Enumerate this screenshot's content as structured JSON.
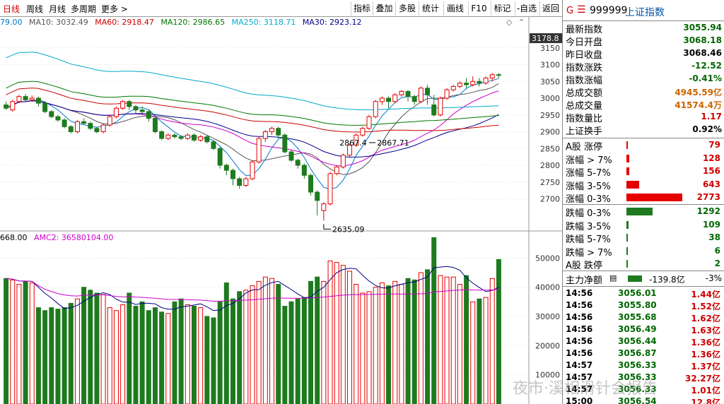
{
  "toolbar": {
    "period_tabs": [
      "日线",
      "周线",
      "月线",
      "多周期",
      "更多 >"
    ],
    "buttons": [
      "指标",
      "叠加",
      "多股",
      "统计",
      "画线",
      "F10",
      "标记",
      "-自选",
      "返回"
    ]
  },
  "ma_legend": [
    {
      "text": "79.00",
      "color": "#0077cc"
    },
    {
      "text": "MA10: 3032.49",
      "color": "#555555"
    },
    {
      "text": "MA60: 2918.47",
      "color": "#cc0000"
    },
    {
      "text": "MA120: 2986.65",
      "color": "#007700"
    },
    {
      "text": "MA250: 3118.71",
      "color": "#00aacc"
    },
    {
      "text": "MA30: 2923.12",
      "color": "#000088"
    }
  ],
  "vol_legend": [
    {
      "text": "668.00",
      "color": "#000000"
    },
    {
      "text": "AMC2: 36580104.00",
      "color": "#cc00cc"
    }
  ],
  "price_axis": {
    "current": "3178.8",
    "ticks": [
      "3150",
      "3100",
      "3050",
      "3000",
      "2950",
      "2900",
      "2850",
      "2800",
      "2750",
      "2700"
    ]
  },
  "vol_axis": {
    "ticks": [
      "50000",
      "40000",
      "30000",
      "20000",
      "10000"
    ]
  },
  "annotations": {
    "low": "2635.09",
    "mid": "2867.4",
    "mid2": "2867.71"
  },
  "chart_data": {
    "type": "candlestick",
    "candles": [
      [
        2980,
        2970,
        2990,
        2965
      ],
      [
        2965,
        2990,
        2995,
        2960
      ],
      [
        2990,
        3005,
        3010,
        2985
      ],
      [
        3005,
        2995,
        3012,
        2990
      ],
      [
        2995,
        3000,
        3008,
        2990
      ],
      [
        3000,
        2985,
        3005,
        2975
      ],
      [
        2985,
        2960,
        2990,
        2955
      ],
      [
        2960,
        2945,
        2965,
        2940
      ],
      [
        2945,
        2935,
        2950,
        2930
      ],
      [
        2935,
        2915,
        2940,
        2910
      ],
      [
        2915,
        2900,
        2920,
        2895
      ],
      [
        2900,
        2930,
        2935,
        2895
      ],
      [
        2930,
        2925,
        2940,
        2920
      ],
      [
        2925,
        2910,
        2930,
        2905
      ],
      [
        2910,
        2900,
        2915,
        2895
      ],
      [
        2900,
        2920,
        2925,
        2895
      ],
      [
        2920,
        2945,
        2950,
        2915
      ],
      [
        2945,
        2970,
        2975,
        2940
      ],
      [
        2970,
        2990,
        2995,
        2965
      ],
      [
        2990,
        2975,
        2995,
        2965
      ],
      [
        2975,
        2965,
        2980,
        2955
      ],
      [
        2965,
        2960,
        2975,
        2955
      ],
      [
        2960,
        2940,
        2965,
        2930
      ],
      [
        2940,
        2900,
        2945,
        2895
      ],
      [
        2900,
        2880,
        2905,
        2875
      ],
      [
        2880,
        2890,
        2895,
        2875
      ],
      [
        2890,
        2885,
        2895,
        2880
      ],
      [
        2885,
        2880,
        2890,
        2875
      ],
      [
        2880,
        2890,
        2895,
        2875
      ],
      [
        2890,
        2875,
        2895,
        2870
      ],
      [
        2875,
        2885,
        2890,
        2870
      ],
      [
        2885,
        2870,
        2890,
        2865
      ],
      [
        2870,
        2850,
        2875,
        2845
      ],
      [
        2850,
        2800,
        2855,
        2790
      ],
      [
        2800,
        2785,
        2805,
        2770
      ],
      [
        2785,
        2760,
        2790,
        2740
      ],
      [
        2760,
        2740,
        2765,
        2730
      ],
      [
        2740,
        2760,
        2765,
        2735
      ],
      [
        2760,
        2810,
        2815,
        2755
      ],
      [
        2810,
        2880,
        2885,
        2805
      ],
      [
        2880,
        2900,
        2905,
        2870
      ],
      [
        2900,
        2910,
        2915,
        2890
      ],
      [
        2910,
        2890,
        2915,
        2880
      ],
      [
        2890,
        2840,
        2895,
        2835
      ],
      [
        2840,
        2815,
        2845,
        2810
      ],
      [
        2815,
        2800,
        2820,
        2790
      ],
      [
        2800,
        2770,
        2805,
        2760
      ],
      [
        2770,
        2720,
        2775,
        2710
      ],
      [
        2720,
        2695,
        2725,
        2650
      ],
      [
        2665,
        2685,
        2690,
        2635
      ],
      [
        2685,
        2775,
        2780,
        2680
      ],
      [
        2775,
        2795,
        2800,
        2770
      ],
      [
        2795,
        2830,
        2835,
        2790
      ],
      [
        2830,
        2860,
        2865,
        2825
      ],
      [
        2860,
        2890,
        2895,
        2855
      ],
      [
        2890,
        2910,
        2915,
        2885
      ],
      [
        2910,
        2945,
        2950,
        2905
      ],
      [
        2945,
        2990,
        2995,
        2940
      ],
      [
        2990,
        3000,
        3005,
        2980
      ],
      [
        3000,
        2990,
        3005,
        2970
      ],
      [
        2990,
        3010,
        3015,
        2985
      ],
      [
        3010,
        3020,
        3025,
        3005
      ],
      [
        3020,
        3005,
        3025,
        2990
      ],
      [
        3005,
        2990,
        3010,
        2980
      ],
      [
        2990,
        3030,
        3035,
        2985
      ],
      [
        3030,
        3010,
        3040,
        2980
      ],
      [
        2980,
        2950,
        3010,
        2945
      ],
      [
        2950,
        3000,
        3005,
        2945
      ],
      [
        3000,
        3025,
        3030,
        2995
      ],
      [
        3025,
        3035,
        3040,
        3020
      ],
      [
        3035,
        3045,
        3050,
        3030
      ],
      [
        3045,
        3040,
        3060,
        3030
      ],
      [
        3040,
        3050,
        3065,
        3035
      ],
      [
        3050,
        3045,
        3060,
        3035
      ],
      [
        3045,
        3060,
        3065,
        3040
      ],
      [
        3060,
        3070,
        3075,
        3050
      ],
      [
        3070,
        3068,
        3075,
        3060
      ]
    ],
    "volumes": [
      4300,
      4250,
      4100,
      4200,
      4150,
      3300,
      3200,
      3300,
      3250,
      3300,
      3450,
      3600,
      4000,
      3900,
      3800,
      3750,
      3300,
      3200,
      3400,
      3800,
      3350,
      3500,
      3200,
      3300,
      3150,
      3100,
      3500,
      3600,
      3400,
      3350,
      3300,
      3000,
      2950,
      3500,
      4150,
      3600,
      3850,
      3900,
      4050,
      4200,
      4350,
      4300,
      4100,
      3350,
      3500,
      3600,
      3650,
      4200,
      4350,
      4200,
      4900,
      4850,
      4750,
      4550,
      4100,
      3800,
      3850,
      4000,
      4150,
      4050,
      4200,
      4100,
      4300,
      4250,
      4500,
      4600,
      5700,
      4400,
      4350,
      4350,
      4100,
      4400,
      3500,
      3600,
      3650,
      4300,
      4950
    ],
    "price_range": [
      2600,
      3200
    ],
    "vol_range": [
      0,
      60000
    ]
  },
  "right_panel": {
    "header": {
      "code": "999999",
      "name": "上证指数",
      "code_prefix": "G",
      "menu_icon": "menu-icon"
    },
    "quotes": [
      {
        "label": "最新指数",
        "value": "3055.94",
        "color": "#006600"
      },
      {
        "label": "今日开盘",
        "value": "3068.18",
        "color": "#006600"
      },
      {
        "label": "昨日收盘",
        "value": "3068.46",
        "color": "#000000"
      },
      {
        "label": "指数涨跌",
        "value": "-12.52",
        "color": "#006600"
      },
      {
        "label": "指数涨幅",
        "value": "-0.41%",
        "color": "#006600"
      },
      {
        "label": "总成交额",
        "value": "4945.59亿",
        "color": "#cc6600"
      },
      {
        "label": "总成交量",
        "value": "41574.4万",
        "color": "#cc6600"
      },
      {
        "label": "指数量比",
        "value": "1.17",
        "color": "#cc0000"
      },
      {
        "label": "上证换手",
        "value": "0.92%",
        "color": "#000000"
      }
    ],
    "breadth_up": [
      {
        "label": "A股 涨停",
        "value": "79",
        "bar": 0.02
      },
      {
        "label": "涨幅 > 7%",
        "value": "128",
        "bar": 0.04
      },
      {
        "label": "涨幅 5-7%",
        "value": "156",
        "bar": 0.05
      },
      {
        "label": "涨幅 3-5%",
        "value": "643",
        "bar": 0.21
      },
      {
        "label": "涨幅 0-3%",
        "value": "2773",
        "bar": 0.9
      }
    ],
    "breadth_down": [
      {
        "label": "跌幅 0-3%",
        "value": "1292",
        "bar": 0.42
      },
      {
        "label": "跌幅 3-5%",
        "value": "109",
        "bar": 0.035
      },
      {
        "label": "跌幅 5-7%",
        "value": "38",
        "bar": 0.012
      },
      {
        "label": "跌幅 > 7%",
        "value": "6",
        "bar": 0.004
      },
      {
        "label": "A股 跌停",
        "value": "2",
        "bar": 0.002
      }
    ],
    "netflow": {
      "label": "主力净额",
      "value": "-139.8亿",
      "pct": "-3%",
      "icon": "list-icon"
    },
    "ticks": [
      {
        "time": "14:56",
        "price": "3056.01",
        "vol": "1.44亿"
      },
      {
        "time": "14:56",
        "price": "3055.80",
        "vol": "1.52亿"
      },
      {
        "time": "14:56",
        "price": "3055.68",
        "vol": "1.62亿"
      },
      {
        "time": "14:56",
        "price": "3056.49",
        "vol": "1.63亿"
      },
      {
        "time": "14:56",
        "price": "3056.44",
        "vol": "1.36亿"
      },
      {
        "time": "14:56",
        "price": "3056.87",
        "vol": "1.36亿"
      },
      {
        "time": "14:57",
        "price": "3056.33",
        "vol": "1.37亿"
      },
      {
        "time": "14:57",
        "price": "3056.33",
        "vol": "32.27亿"
      },
      {
        "time": "14:57",
        "price": "3056.33",
        "vol": "1.01亿"
      },
      {
        "time": "15:00",
        "price": "3056.54",
        "vol": "12.8亿"
      }
    ]
  },
  "watermark": "夜市·溪相滑针会报告"
}
